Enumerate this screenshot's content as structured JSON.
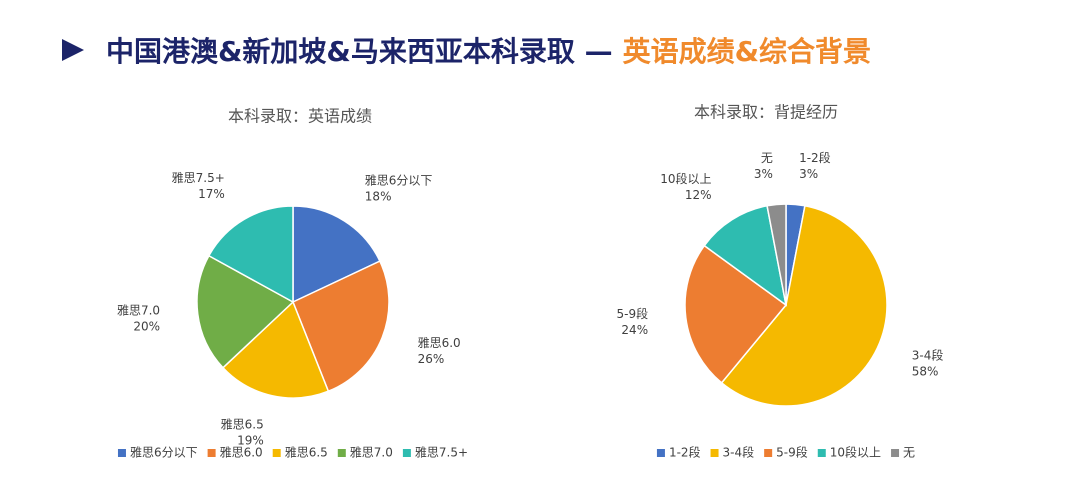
{
  "page_title": {
    "main": "中国港澳&新加坡&马来西亚本科录取 —",
    "highlight": "英语成绩&综合背景"
  },
  "chart_data": [
    {
      "type": "pie",
      "title": "本科录取：英语成绩",
      "categories": [
        "雅思6分以下",
        "雅思6.0",
        "雅思6.5",
        "雅思7.0",
        "雅思7.5+"
      ],
      "values": [
        18,
        26,
        19,
        20,
        17
      ],
      "value_labels": [
        "18%",
        "26%",
        "19%",
        "20%",
        "17%"
      ],
      "colors": [
        "#4472c4",
        "#ed7d31",
        "#f5b900",
        "#70ad47",
        "#2ebcb0"
      ],
      "legend": "bottom"
    },
    {
      "type": "pie",
      "title": "本科录取：背提经历",
      "categories": [
        "1-2段",
        "3-4段",
        "5-9段",
        "10段以上",
        "无"
      ],
      "values": [
        3,
        58,
        24,
        12,
        3
      ],
      "value_labels": [
        "3%",
        "58%",
        "24%",
        "12%",
        "3%"
      ],
      "colors": [
        "#4472c4",
        "#f5b900",
        "#ed7d31",
        "#2ebcb0",
        "#8c8c8c"
      ],
      "legend": "bottom"
    }
  ]
}
